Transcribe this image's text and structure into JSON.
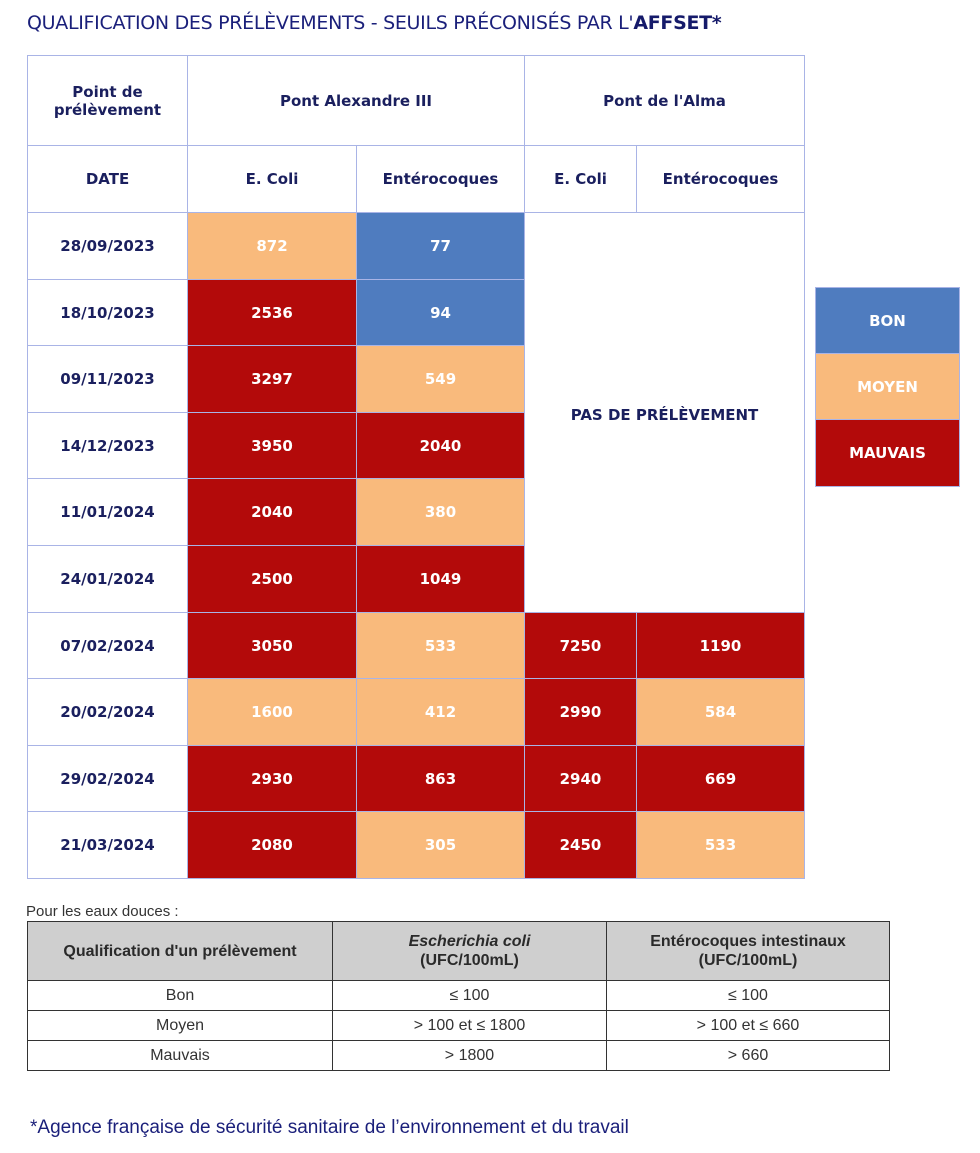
{
  "title": {
    "prefix": "QUALIFICATION DES PRÉLÈVEMENTS - SEUILS PRÉCONISÉS PAR L'",
    "bold": "AFFSET*"
  },
  "main_table": {
    "header_point": "Point de prélèvement",
    "site1": "Pont Alexandre III",
    "site2": "Pont de l'Alma",
    "header_date": "DATE",
    "col_ecoli": "E. Coli",
    "col_entero": "Entérocoques",
    "no_sample": "PAS DE PRÉLÈVEMENT",
    "rows": [
      {
        "date": "28/09/2023",
        "a_ecoli": "872",
        "a_ecoli_q": "moyen",
        "a_entero": "77",
        "a_entero_q": "bon",
        "b_ecoli": "",
        "b_ecoli_q": "none",
        "b_entero": "",
        "b_entero_q": "none"
      },
      {
        "date": "18/10/2023",
        "a_ecoli": "2536",
        "a_ecoli_q": "mauvais",
        "a_entero": "94",
        "a_entero_q": "bon",
        "b_ecoli": "",
        "b_ecoli_q": "none",
        "b_entero": "",
        "b_entero_q": "none"
      },
      {
        "date": "09/11/2023",
        "a_ecoli": "3297",
        "a_ecoli_q": "mauvais",
        "a_entero": "549",
        "a_entero_q": "moyen",
        "b_ecoli": "",
        "b_ecoli_q": "none",
        "b_entero": "",
        "b_entero_q": "none"
      },
      {
        "date": "14/12/2023",
        "a_ecoli": "3950",
        "a_ecoli_q": "mauvais",
        "a_entero": "2040",
        "a_entero_q": "mauvais",
        "b_ecoli": "",
        "b_ecoli_q": "none",
        "b_entero": "",
        "b_entero_q": "none"
      },
      {
        "date": "11/01/2024",
        "a_ecoli": "2040",
        "a_ecoli_q": "mauvais",
        "a_entero": "380",
        "a_entero_q": "moyen",
        "b_ecoli": "",
        "b_ecoli_q": "none",
        "b_entero": "",
        "b_entero_q": "none"
      },
      {
        "date": "24/01/2024",
        "a_ecoli": "2500",
        "a_ecoli_q": "mauvais",
        "a_entero": "1049",
        "a_entero_q": "mauvais",
        "b_ecoli": "",
        "b_ecoli_q": "none",
        "b_entero": "",
        "b_entero_q": "none"
      },
      {
        "date": "07/02/2024",
        "a_ecoli": "3050",
        "a_ecoli_q": "mauvais",
        "a_entero": "533",
        "a_entero_q": "moyen",
        "b_ecoli": "7250",
        "b_ecoli_q": "mauvais",
        "b_entero": "1190",
        "b_entero_q": "mauvais"
      },
      {
        "date": "20/02/2024",
        "a_ecoli": "1600",
        "a_ecoli_q": "moyen",
        "a_entero": "412",
        "a_entero_q": "moyen",
        "b_ecoli": "2990",
        "b_ecoli_q": "mauvais",
        "b_entero": "584",
        "b_entero_q": "moyen"
      },
      {
        "date": "29/02/2024",
        "a_ecoli": "2930",
        "a_ecoli_q": "mauvais",
        "a_entero": "863",
        "a_entero_q": "mauvais",
        "b_ecoli": "2940",
        "b_ecoli_q": "mauvais",
        "b_entero": "669",
        "b_entero_q": "mauvais"
      },
      {
        "date": "21/03/2024",
        "a_ecoli": "2080",
        "a_ecoli_q": "mauvais",
        "a_entero": "305",
        "a_entero_q": "moyen",
        "b_ecoli": "2450",
        "b_ecoli_q": "mauvais",
        "b_entero": "533",
        "b_entero_q": "moyen"
      }
    ]
  },
  "legend": [
    {
      "label": "BON",
      "q": "bon"
    },
    {
      "label": "MOYEN",
      "q": "moyen"
    },
    {
      "label": "MAUVAIS",
      "q": "mauvais"
    }
  ],
  "colors": {
    "bon": "#4f7cbf",
    "moyen": "#f9ba7c",
    "mauvais": "#b30a0a",
    "title": "#1a1f7a"
  },
  "thresholds": {
    "intro": "Pour les eaux douces :",
    "h1": "Qualification d'un prélèvement",
    "h2_italic": "Escherichia coli",
    "h2_unit": "(UFC/100mL)",
    "h3a": "Entérocoques intestinaux",
    "h3_unit": "(UFC/100mL)",
    "rows": [
      {
        "q": "Bon",
        "ecoli": "≤ 100",
        "entero": "≤ 100"
      },
      {
        "q": "Moyen",
        "ecoli": "> 100 et ≤ 1800",
        "entero": "> 100 et ≤ 660"
      },
      {
        "q": "Mauvais",
        "ecoli": "> 1800",
        "entero": "> 660"
      }
    ]
  },
  "footnote": "*Agence française de sécurité sanitaire de l’environnement et du travail"
}
